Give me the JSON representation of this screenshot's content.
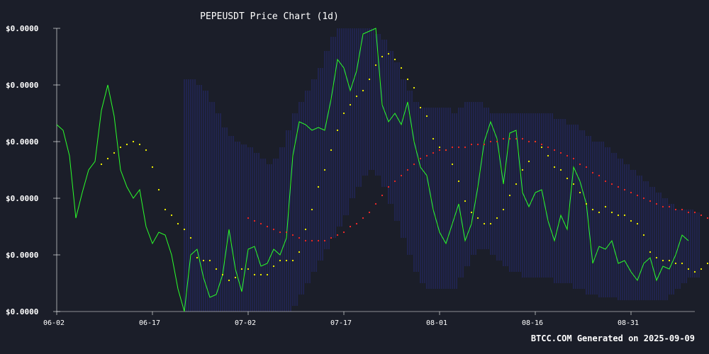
{
  "chart_data": {
    "type": "line",
    "title": "PEPEUSDT Price Chart (1d)",
    "xlabel": "",
    "ylabel": "",
    "y_tick_labels": [
      "$0.0000",
      "$0.0000",
      "$0.0000",
      "$0.0000",
      "$0.0000",
      "$0.0000"
    ],
    "x_tick_labels": [
      "06-02",
      "06-17",
      "07-02",
      "07-17",
      "08-01",
      "08-16",
      "08-31"
    ],
    "x_tick_days": [
      0,
      15,
      30,
      45,
      60,
      75,
      90
    ],
    "y_range": [
      0,
      100
    ],
    "grid": false,
    "legend": "none",
    "colors": {
      "background": "#1b1e29",
      "price": "#2bff2b",
      "ma_short": "#ffff00",
      "ma_long": "#ff2a2a",
      "band": "#2a2f8a",
      "axis": "#ffffff"
    },
    "series": [
      {
        "style": "line",
        "values": [
          66,
          64,
          55,
          33,
          42,
          50,
          53,
          71,
          80,
          69,
          50,
          44,
          40,
          43,
          30,
          24,
          28,
          27,
          20,
          8,
          0,
          20,
          22,
          12,
          5,
          6,
          13,
          29,
          15,
          7,
          22,
          23,
          16,
          17,
          22,
          20,
          26,
          55,
          67,
          66,
          64,
          65,
          64,
          75,
          89,
          86,
          78,
          85,
          98,
          99,
          100,
          73,
          67,
          70,
          66,
          74,
          60,
          51,
          48,
          36,
          28,
          24,
          31,
          38,
          25,
          31,
          44,
          60,
          67,
          61,
          45,
          63,
          64,
          42,
          37,
          42,
          43,
          32,
          25,
          34,
          29,
          51,
          46,
          38,
          17,
          23,
          22,
          25,
          17,
          18,
          14,
          11,
          17,
          19,
          11,
          16,
          15,
          20,
          27,
          25
        ]
      },
      {
        "style": "dots",
        "start_day": 7,
        "values": [
          52,
          54,
          56,
          58,
          59,
          60,
          59,
          57,
          51,
          43,
          36,
          34,
          31,
          29,
          26,
          19,
          18,
          18,
          15,
          13,
          11,
          12,
          15,
          15,
          13,
          13,
          13,
          16,
          18,
          18,
          18,
          21,
          29,
          36,
          44,
          50,
          57,
          64,
          70,
          73,
          76,
          78,
          82,
          87,
          90,
          91,
          89,
          86,
          82,
          79,
          72,
          69,
          61,
          58,
          57,
          52,
          46,
          39,
          35,
          33,
          31,
          31,
          33,
          36,
          41,
          45,
          50,
          53,
          60,
          58,
          55,
          51,
          50,
          47,
          45,
          42,
          38,
          36,
          35,
          37,
          35,
          34,
          34,
          32,
          31,
          27,
          21,
          19,
          18,
          18,
          17,
          17,
          15,
          14,
          15,
          17,
          19
        ]
      },
      {
        "style": "dots",
        "start_day": 30,
        "values": [
          33,
          32,
          31,
          30,
          29,
          28,
          28,
          27,
          26,
          25,
          25,
          25,
          25,
          26,
          27,
          28,
          30,
          31,
          33,
          35,
          38,
          41,
          44,
          46,
          48,
          50,
          52,
          54,
          55,
          56,
          57,
          57,
          58,
          58,
          58,
          59,
          59,
          59,
          60,
          60,
          61,
          61,
          61,
          61,
          60,
          60,
          59,
          58,
          57,
          56,
          55,
          54,
          52,
          51,
          49,
          48,
          46,
          45,
          44,
          43,
          42,
          41,
          40,
          39,
          38,
          37,
          37,
          36,
          36,
          35,
          35,
          34,
          33,
          32,
          32,
          31,
          30,
          29
        ]
      }
    ],
    "band": {
      "start_day": 20,
      "end_day": 100,
      "upper": [
        82,
        82,
        80,
        78,
        74,
        70,
        65,
        62,
        60,
        59,
        58,
        56,
        54,
        52,
        54,
        58,
        64,
        70,
        74,
        78,
        82,
        86,
        92,
        97,
        100,
        100,
        100,
        100,
        100,
        100,
        98,
        96,
        92,
        88,
        82,
        78,
        74,
        72,
        72,
        72,
        72,
        72,
        70,
        72,
        74,
        74,
        74,
        72,
        70,
        70,
        70,
        70,
        70,
        70,
        70,
        70,
        70,
        70,
        68,
        68,
        66,
        66,
        64,
        62,
        60,
        60,
        58,
        56,
        54,
        52,
        50,
        48,
        46,
        44,
        42,
        40,
        38,
        36,
        36,
        36,
        35
      ],
      "lower": [
        -10,
        -12,
        -14,
        -14,
        -14,
        -13,
        -10,
        -10,
        -12,
        -12,
        -10,
        -8,
        -6,
        -4,
        -4,
        -2,
        0,
        2,
        6,
        10,
        14,
        18,
        22,
        26,
        30,
        34,
        40,
        44,
        48,
        50,
        48,
        44,
        38,
        32,
        26,
        20,
        14,
        10,
        8,
        8,
        8,
        8,
        8,
        12,
        16,
        20,
        22,
        22,
        20,
        18,
        16,
        14,
        14,
        12,
        12,
        12,
        12,
        12,
        10,
        10,
        10,
        8,
        8,
        6,
        6,
        5,
        5,
        5,
        4,
        4,
        4,
        4,
        4,
        4,
        4,
        4,
        6,
        8,
        10,
        12,
        12
      ]
    }
  },
  "footer": "BTCC.COM Generated on 2025-09-09"
}
